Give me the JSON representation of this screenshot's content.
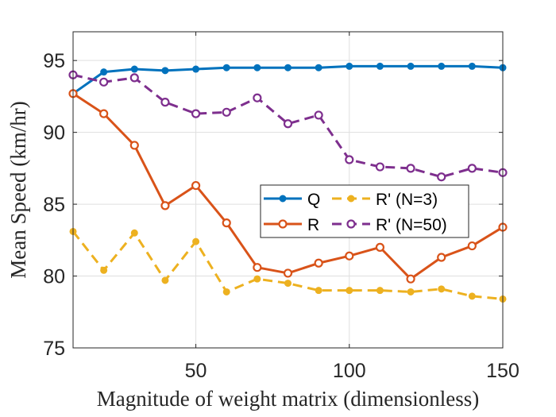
{
  "chart_data": {
    "type": "line",
    "title": "",
    "xlabel": "Magnitude of weight matrix (dimensionless)",
    "ylabel": "Mean Speed (km/hr)",
    "xlim": [
      10,
      150
    ],
    "ylim": [
      75,
      97
    ],
    "xticks": [
      50,
      100,
      150
    ],
    "yticks": [
      75,
      80,
      85,
      90,
      95
    ],
    "grid": true,
    "legend_placement": "center-right",
    "x": [
      10,
      20,
      30,
      40,
      50,
      60,
      70,
      80,
      90,
      100,
      110,
      120,
      130,
      140,
      150
    ],
    "series": [
      {
        "name": "Q",
        "color": "#0072BD",
        "line_style": "solid",
        "marker": "filled-circle",
        "values": [
          92.7,
          94.2,
          94.4,
          94.3,
          94.4,
          94.5,
          94.5,
          94.5,
          94.5,
          94.6,
          94.6,
          94.6,
          94.6,
          94.6,
          94.5
        ]
      },
      {
        "name": "R",
        "color": "#D95319",
        "line_style": "solid",
        "marker": "open-circle",
        "values": [
          92.7,
          91.3,
          89.1,
          84.9,
          86.3,
          83.7,
          80.6,
          80.2,
          80.9,
          81.4,
          82.0,
          79.8,
          81.3,
          82.1,
          83.4
        ]
      },
      {
        "name": "R' (N=3)",
        "color": "#EDB120",
        "line_style": "dashed",
        "marker": "filled-circle",
        "values": [
          83.1,
          80.4,
          83.0,
          79.7,
          82.4,
          78.9,
          79.8,
          79.5,
          79.0,
          79.0,
          79.0,
          78.9,
          79.1,
          78.6,
          78.4
        ]
      },
      {
        "name": "R' (N=50)",
        "color": "#7E2F8E",
        "line_style": "dashed",
        "marker": "open-circle",
        "values": [
          94.0,
          93.5,
          93.8,
          92.1,
          91.3,
          91.4,
          92.4,
          90.6,
          91.2,
          88.1,
          87.6,
          87.5,
          86.9,
          87.5,
          87.2
        ]
      }
    ]
  }
}
